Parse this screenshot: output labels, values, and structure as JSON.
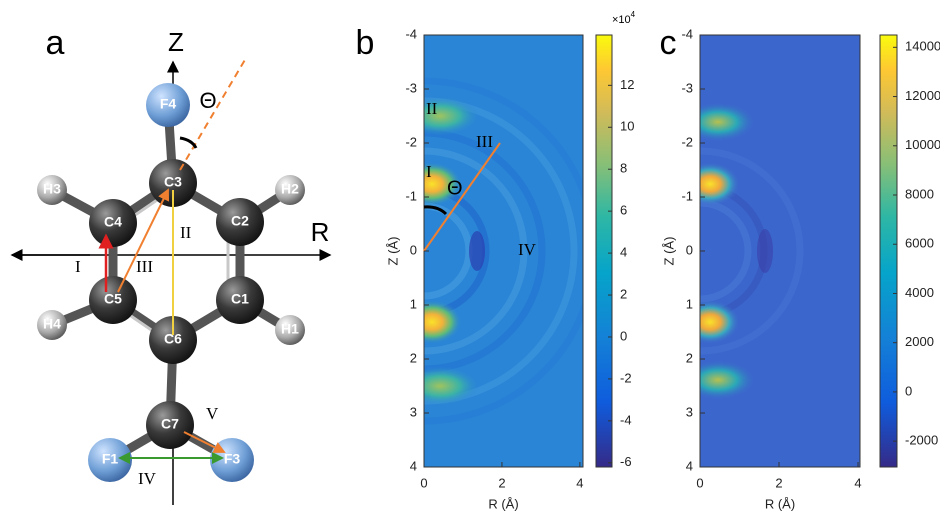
{
  "panel_a": {
    "label": "a",
    "axis_z": "Z",
    "axis_r": "R",
    "theta": "Θ",
    "atoms": [
      "F4",
      "C3",
      "H3",
      "C4",
      "C2",
      "H2",
      "C5",
      "C1",
      "H4",
      "C6",
      "H1",
      "C7",
      "F1",
      "F3"
    ],
    "distances": [
      "I",
      "II",
      "III",
      "IV",
      "V"
    ]
  },
  "panel_b": {
    "label": "b",
    "xlabel": "R (Å)",
    "ylabel": "Z (Å)",
    "xticks": [
      0,
      2,
      4
    ],
    "yticks": [
      -4,
      -3,
      -2,
      -1,
      0,
      1,
      2,
      3,
      4
    ],
    "xlim": [
      0,
      4.08
    ],
    "ylim": [
      -4,
      4
    ],
    "colorbar_ticks": [
      -6,
      -4,
      -2,
      0,
      2,
      4,
      6,
      8,
      10,
      12
    ],
    "colorbar_lim": [
      -6.2,
      14.4
    ],
    "colorbar_scale": {
      "base": "×10",
      "exponent": "4"
    },
    "annotations": [
      "II",
      "III",
      "I",
      "Θ",
      "IV"
    ]
  },
  "panel_c": {
    "label": "c",
    "xlabel": "R (Å)",
    "ylabel": "Z (Å)",
    "xticks": [
      0,
      2,
      4
    ],
    "yticks": [
      -4,
      -3,
      -2,
      -1,
      0,
      1,
      2,
      3,
      4
    ],
    "xlim": [
      0,
      4.05
    ],
    "ylim": [
      -4,
      4
    ],
    "colorbar_ticks": [
      -2000,
      0,
      2000,
      4000,
      6000,
      8000,
      10000,
      12000,
      14000
    ],
    "colorbar_lim": [
      -3050,
      14500
    ]
  }
}
